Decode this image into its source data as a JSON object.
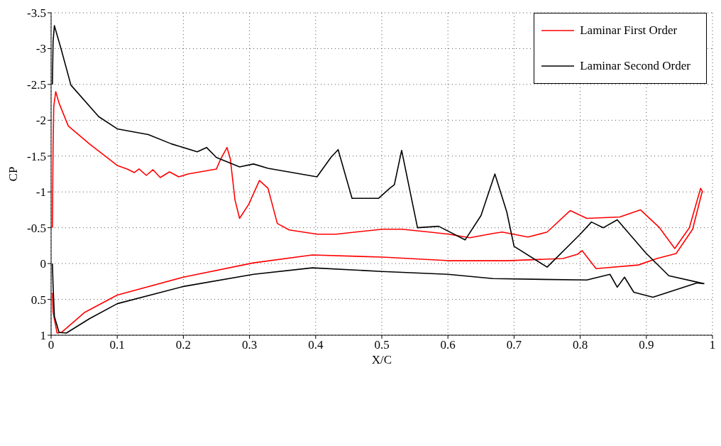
{
  "chart_data": {
    "type": "line",
    "xlabel": "X/C",
    "ylabel": "CP",
    "xlim": [
      0,
      1
    ],
    "ylim": [
      1,
      -3.5
    ],
    "xticks": [
      0,
      0.1,
      0.2,
      0.3,
      0.4,
      0.5,
      0.6,
      0.7,
      0.8,
      0.9,
      1
    ],
    "yticks": [
      -3.5,
      -3,
      -2.5,
      -2,
      -1.5,
      -1,
      -0.5,
      0,
      0.5,
      1
    ],
    "grid": true,
    "legend": "top right",
    "marker": "none",
    "line_style": "solid",
    "series": [
      {
        "name": "Laminar First Order",
        "color": "#ff0000",
        "x": [
          0.002,
          0.003,
          0.004,
          0.007,
          0.012,
          0.026,
          0.058,
          0.1,
          0.115,
          0.126,
          0.133,
          0.144,
          0.154,
          0.165,
          0.179,
          0.193,
          0.207,
          0.25,
          0.256,
          0.266,
          0.271,
          0.278,
          0.285,
          0.299,
          0.315,
          0.328,
          0.342,
          0.36,
          0.402,
          0.431,
          0.501,
          0.53,
          0.572,
          0.601,
          0.633,
          0.668,
          0.682,
          0.721,
          0.75,
          0.785,
          0.81,
          0.86,
          0.891,
          0.92,
          0.943,
          0.965,
          0.982,
          0.985,
          0.984,
          0.97,
          0.945,
          0.916,
          0.888,
          0.824,
          0.803,
          0.796,
          0.774,
          0.689,
          0.601,
          0.501,
          0.395,
          0.306,
          0.2,
          0.1,
          0.051,
          0.016,
          0.009,
          0.003,
          0.002
        ],
        "values": [
          -0.5,
          -1.62,
          -2.19,
          -2.4,
          -2.24,
          -1.92,
          -1.67,
          -1.37,
          -1.32,
          -1.27,
          -1.32,
          -1.23,
          -1.31,
          -1.2,
          -1.28,
          -1.21,
          -1.25,
          -1.32,
          -1.45,
          -1.62,
          -1.46,
          -0.89,
          -0.63,
          -0.83,
          -1.16,
          -1.05,
          -0.56,
          -0.47,
          -0.41,
          -0.41,
          -0.48,
          -0.48,
          -0.44,
          -0.41,
          -0.36,
          -0.42,
          -0.44,
          -0.37,
          -0.44,
          -0.74,
          -0.63,
          -0.65,
          -0.75,
          -0.5,
          -0.21,
          -0.5,
          -1.05,
          -1.0,
          -0.99,
          -0.48,
          -0.14,
          -0.07,
          0.02,
          0.07,
          -0.18,
          -0.13,
          -0.07,
          -0.04,
          -0.04,
          -0.09,
          -0.12,
          -0.01,
          0.19,
          0.44,
          0.68,
          0.96,
          0.97,
          0.68,
          0.41
        ]
      },
      {
        "name": "Laminar Second Order",
        "color": "#000000",
        "x": [
          0.002,
          0.003,
          0.005,
          0.015,
          0.03,
          0.072,
          0.1,
          0.147,
          0.182,
          0.221,
          0.235,
          0.25,
          0.285,
          0.306,
          0.328,
          0.402,
          0.423,
          0.434,
          0.455,
          0.495,
          0.512,
          0.519,
          0.53,
          0.554,
          0.586,
          0.626,
          0.65,
          0.671,
          0.689,
          0.7,
          0.75,
          0.8,
          0.817,
          0.835,
          0.856,
          0.899,
          0.934,
          0.987,
          0.977,
          0.91,
          0.881,
          0.867,
          0.856,
          0.845,
          0.81,
          0.668,
          0.6,
          0.5,
          0.395,
          0.306,
          0.2,
          0.1,
          0.058,
          0.023,
          0.012,
          0.005,
          0.003,
          0.002
        ],
        "values": [
          -2.5,
          -3.1,
          -3.32,
          -3.0,
          -2.49,
          -2.05,
          -1.88,
          -1.8,
          -1.67,
          -1.56,
          -1.62,
          -1.48,
          -1.35,
          -1.39,
          -1.33,
          -1.21,
          -1.48,
          -1.59,
          -0.91,
          -0.91,
          -1.05,
          -1.1,
          -1.58,
          -0.5,
          -0.52,
          -0.33,
          -0.67,
          -1.25,
          -0.72,
          -0.24,
          0.05,
          -0.41,
          -0.58,
          -0.5,
          -0.61,
          -0.15,
          0.17,
          0.28,
          0.27,
          0.47,
          0.4,
          0.19,
          0.33,
          0.15,
          0.23,
          0.21,
          0.15,
          0.11,
          0.06,
          0.15,
          0.32,
          0.56,
          0.77,
          0.97,
          0.96,
          0.74,
          0.31,
          0
        ]
      }
    ]
  }
}
